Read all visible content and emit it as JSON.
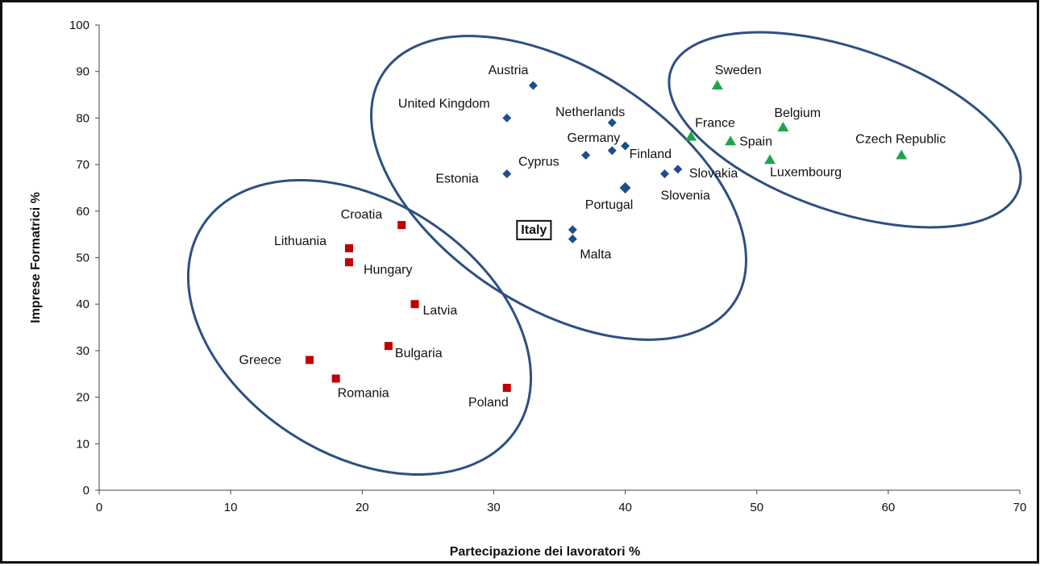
{
  "chart_data": {
    "type": "scatter",
    "title": "",
    "xlabel": "Partecipazione dei lavoratori %",
    "ylabel": "Imprese Formatrici %",
    "xlim": [
      0,
      70
    ],
    "ylim": [
      0,
      100
    ],
    "x_ticks": [
      0,
      10,
      20,
      30,
      40,
      50,
      60,
      70
    ],
    "y_ticks": [
      0,
      10,
      20,
      30,
      40,
      50,
      60,
      70,
      80,
      90,
      100
    ],
    "grid": false,
    "legend": "none",
    "highlight_label": "Italy",
    "series": [
      {
        "marker": "square",
        "color": "#c00000",
        "points": [
          {
            "label": "Croatia",
            "x": 23,
            "y": 57
          },
          {
            "label": "Lithuania",
            "x": 19,
            "y": 52
          },
          {
            "label": "Hungary",
            "x": 19,
            "y": 49
          },
          {
            "label": "Latvia",
            "x": 24,
            "y": 40
          },
          {
            "label": "Bulgaria",
            "x": 22,
            "y": 31
          },
          {
            "label": "Greece",
            "x": 16,
            "y": 28
          },
          {
            "label": "Romania",
            "x": 18,
            "y": 24
          },
          {
            "label": "Poland",
            "x": 31,
            "y": 22
          }
        ]
      },
      {
        "marker": "diamond",
        "color": "#1f4e8c",
        "points": [
          {
            "label": "Austria",
            "x": 33,
            "y": 87
          },
          {
            "label": "United Kingdom",
            "x": 31,
            "y": 80
          },
          {
            "label": "Netherlands",
            "x": 39,
            "y": 79
          },
          {
            "label": "Germany",
            "x": 39,
            "y": 73
          },
          {
            "label": "Cyprus",
            "x": 37,
            "y": 72
          },
          {
            "label": "Finland",
            "x": 40,
            "y": 74
          },
          {
            "label": "Estonia",
            "x": 31,
            "y": 68
          },
          {
            "label": "Slovakia",
            "x": 44,
            "y": 69
          },
          {
            "label": "Slovenia",
            "x": 43,
            "y": 68
          },
          {
            "label": "Portugal",
            "x": 40,
            "y": 65
          },
          {
            "label": "Italy",
            "x": 36,
            "y": 56
          },
          {
            "label": "Malta",
            "x": 36,
            "y": 54
          }
        ]
      },
      {
        "marker": "triangle",
        "color": "#1fa64a",
        "points": [
          {
            "label": "Sweden",
            "x": 47,
            "y": 87
          },
          {
            "label": "France",
            "x": 45,
            "y": 76
          },
          {
            "label": "Belgium",
            "x": 52,
            "y": 78
          },
          {
            "label": "Spain",
            "x": 48,
            "y": 75
          },
          {
            "label": "Czech Republic",
            "x": 61,
            "y": 72
          },
          {
            "label": "Luxembourg",
            "x": 51,
            "y": 71
          }
        ]
      }
    ],
    "ellipse_color": "#2e4f82"
  }
}
